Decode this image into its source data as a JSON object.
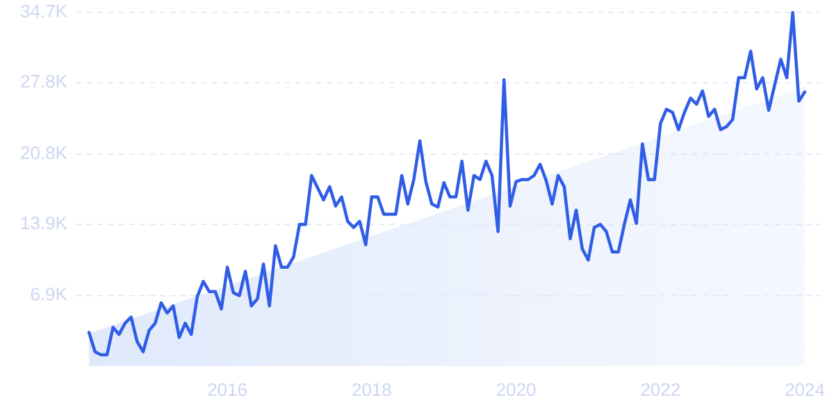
{
  "chart_data": {
    "type": "line",
    "x": [
      2014.083,
      2014.167,
      2014.25,
      2014.333,
      2014.417,
      2014.5,
      2014.583,
      2014.667,
      2014.75,
      2014.833,
      2014.917,
      2015,
      2015.083,
      2015.167,
      2015.25,
      2015.333,
      2015.417,
      2015.5,
      2015.583,
      2015.667,
      2015.75,
      2015.833,
      2015.917,
      2016,
      2016.083,
      2016.167,
      2016.25,
      2016.333,
      2016.417,
      2016.5,
      2016.583,
      2016.667,
      2016.75,
      2016.833,
      2016.917,
      2017,
      2017.083,
      2017.167,
      2017.25,
      2017.333,
      2017.417,
      2017.5,
      2017.583,
      2017.667,
      2017.75,
      2017.833,
      2017.917,
      2018,
      2018.083,
      2018.167,
      2018.25,
      2018.333,
      2018.417,
      2018.5,
      2018.583,
      2018.667,
      2018.75,
      2018.833,
      2018.917,
      2019,
      2019.083,
      2019.167,
      2019.25,
      2019.333,
      2019.417,
      2019.5,
      2019.583,
      2019.667,
      2019.75,
      2019.833,
      2019.917,
      2020,
      2020.083,
      2020.167,
      2020.25,
      2020.333,
      2020.417,
      2020.5,
      2020.583,
      2020.667,
      2020.75,
      2020.833,
      2020.917,
      2021,
      2021.083,
      2021.167,
      2021.25,
      2021.333,
      2021.417,
      2021.5,
      2021.583,
      2021.667,
      2021.75,
      2021.833,
      2021.917,
      2022,
      2022.083,
      2022.167,
      2022.25,
      2022.333,
      2022.417,
      2022.5,
      2022.583,
      2022.667,
      2022.75,
      2022.833,
      2022.917,
      2023,
      2023.083,
      2023.167,
      2023.25,
      2023.333,
      2023.417,
      2023.5,
      2023.583,
      2023.667,
      2023.75,
      2023.833,
      2023.917,
      2024
    ],
    "values": [
      3.3,
      1.4,
      1.1,
      1.1,
      3.8,
      3.1,
      4.2,
      4.8,
      2.4,
      1.4,
      3.5,
      4.2,
      6.2,
      5.2,
      5.9,
      2.8,
      4.2,
      3.1,
      6.8,
      8.3,
      7.3,
      7.3,
      5.6,
      9.7,
      7.2,
      6.9,
      9.3,
      5.9,
      6.6,
      10.0,
      5.9,
      11.8,
      9.7,
      9.7,
      10.7,
      13.9,
      13.9,
      18.7,
      17.5,
      16.3,
      17.6,
      15.7,
      16.6,
      14.2,
      13.6,
      14.2,
      11.9,
      16.6,
      16.6,
      14.9,
      14.9,
      14.9,
      18.7,
      15.9,
      18.3,
      22.1,
      18.1,
      15.9,
      15.6,
      18.0,
      16.6,
      16.6,
      20.1,
      15.3,
      18.7,
      18.3,
      20.1,
      18.7,
      13.2,
      28.1,
      15.7,
      18.1,
      18.3,
      18.3,
      18.7,
      19.8,
      18.2,
      15.9,
      18.7,
      17.6,
      12.5,
      15.3,
      11.5,
      10.4,
      13.6,
      13.9,
      13.2,
      11.2,
      11.2,
      13.9,
      16.3,
      14.0,
      21.8,
      18.3,
      18.3,
      23.8,
      25.2,
      24.9,
      23.2,
      24.9,
      26.3,
      25.7,
      27.0,
      24.5,
      25.2,
      23.2,
      23.5,
      24.2,
      28.3,
      28.3,
      30.9,
      27.2,
      28.3,
      25.1,
      27.6,
      30.1,
      28.3,
      34.7,
      26.0,
      26.9
    ],
    "color": "#2f5de6",
    "trend": {
      "x": [
        2014.083,
        2024
      ],
      "values": [
        3.2,
        27.4
      ],
      "color": "#dde8fb"
    },
    "xlim": [
      2014.083,
      2024
    ],
    "xticks": [
      2016,
      2018,
      2020,
      2022,
      2024
    ],
    "ylim": [
      0,
      34.7
    ],
    "yticks": [
      {
        "value": 6.9,
        "label": "6.9K"
      },
      {
        "value": 13.9,
        "label": "13.9K"
      },
      {
        "value": 20.8,
        "label": "20.8K"
      },
      {
        "value": 27.8,
        "label": "27.8K"
      },
      {
        "value": 34.7,
        "label": "34.7K"
      }
    ],
    "grid": true
  }
}
